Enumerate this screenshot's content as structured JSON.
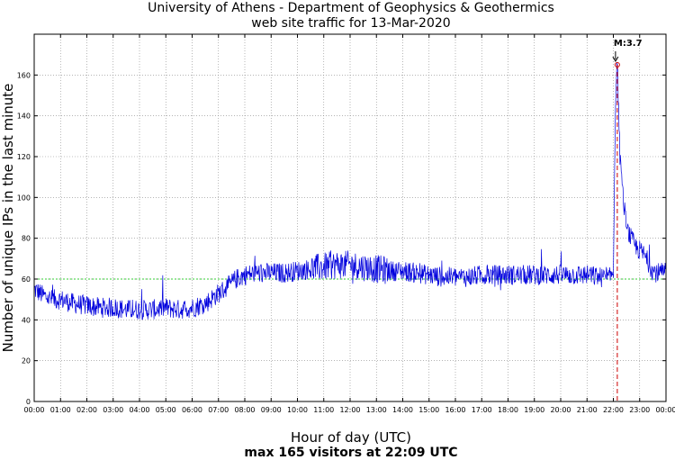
{
  "chart_data": {
    "type": "line",
    "title_line1": "University of Athens - Department of Geophysics & Geothermics",
    "title_line2": "web site traffic for 13-Mar-2020",
    "xlabel": "Hour of day (UTC)",
    "ylabel": "Number of unique IPs in the last minute",
    "footer": "max 165 visitors at 22:09 UTC",
    "xlim_hours": [
      0,
      24
    ],
    "ylim": [
      0,
      180
    ],
    "x_tick_labels": [
      "00:00",
      "01:00",
      "02:00",
      "03:00",
      "04:00",
      "05:00",
      "06:00",
      "07:00",
      "08:00",
      "09:00",
      "10:00",
      "11:00",
      "12:00",
      "13:00",
      "14:00",
      "15:00",
      "16:00",
      "17:00",
      "18:00",
      "19:00",
      "20:00",
      "21:00",
      "22:00",
      "23:00",
      "00:00"
    ],
    "y_ticks": [
      0,
      20,
      40,
      60,
      80,
      100,
      120,
      140,
      160
    ],
    "grid": true,
    "series": [
      {
        "color": "#0000dd",
        "x_times": [
          "00:00",
          "00:20",
          "00:40",
          "01:00",
          "01:30",
          "02:00",
          "02:30",
          "03:00",
          "03:30",
          "04:00",
          "04:30",
          "05:00",
          "05:30",
          "06:00",
          "06:30",
          "07:00",
          "07:20",
          "07:40",
          "08:00",
          "08:30",
          "09:00",
          "09:30",
          "10:00",
          "10:30",
          "11:00",
          "11:30",
          "12:00",
          "12:30",
          "13:00",
          "13:30",
          "14:00",
          "14:30",
          "15:00",
          "15:30",
          "16:00",
          "16:30",
          "17:00",
          "17:30",
          "18:00",
          "18:30",
          "19:00",
          "19:30",
          "20:00",
          "20:30",
          "21:00",
          "21:30",
          "21:50",
          "22:00",
          "22:05",
          "22:09",
          "22:12",
          "22:15",
          "22:20",
          "22:25",
          "22:30",
          "22:40",
          "22:50",
          "23:00",
          "23:10",
          "23:20",
          "23:30",
          "23:40",
          "24:00"
        ],
        "values": [
          55,
          52,
          50,
          50,
          48,
          47,
          46,
          46,
          45,
          45,
          45,
          46,
          45,
          46,
          48,
          53,
          56,
          60,
          62,
          63,
          63,
          63,
          64,
          65,
          66,
          67,
          67,
          66,
          65,
          64,
          64,
          63,
          62,
          61,
          61,
          61,
          62,
          62,
          62,
          62,
          62,
          62,
          62,
          62,
          62,
          61,
          60,
          64,
          150,
          165,
          145,
          120,
          105,
          95,
          85,
          80,
          76,
          74,
          72,
          68,
          64,
          63,
          63
        ]
      }
    ],
    "reference_line": {
      "y": 60,
      "color": "#33cc33"
    },
    "event_marker": {
      "time": "22:09",
      "label": "M:3.7",
      "color": "#cc0000"
    }
  }
}
